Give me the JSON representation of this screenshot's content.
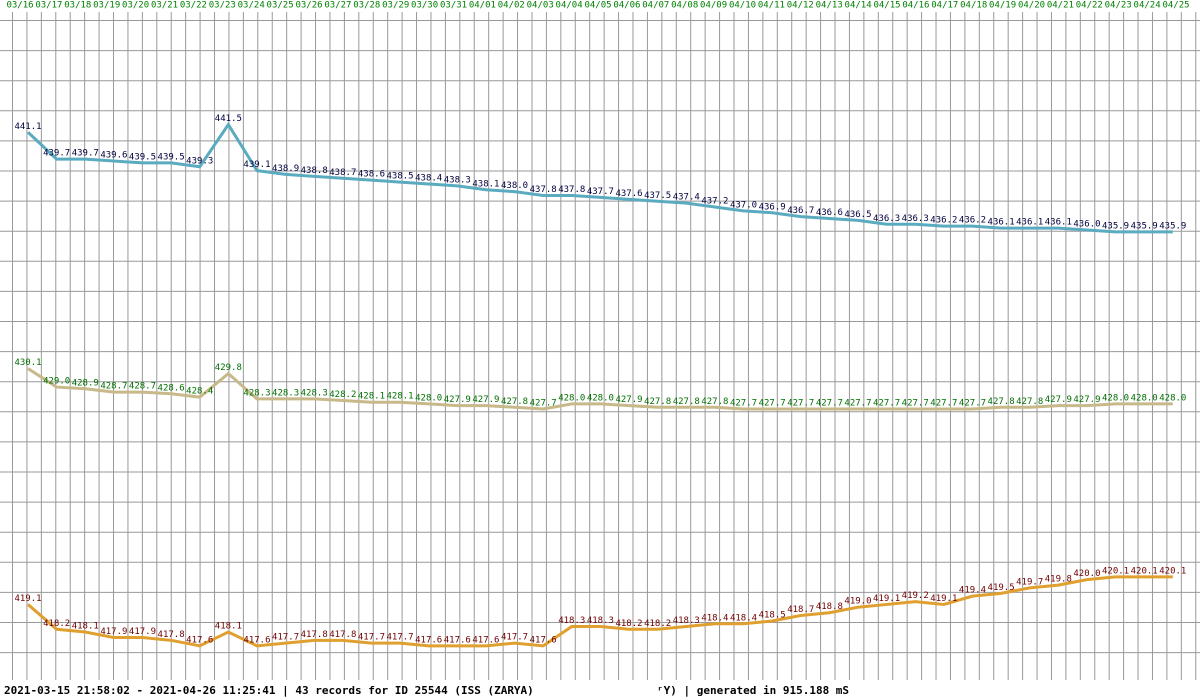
{
  "chart_data": {
    "type": "line",
    "categories": [
      "03/16",
      "03/17",
      "03/18",
      "03/19",
      "03/20",
      "03/21",
      "03/22",
      "03/23",
      "03/24",
      "03/25",
      "03/26",
      "03/27",
      "03/28",
      "03/29",
      "03/30",
      "03/31",
      "04/01",
      "04/02",
      "04/03",
      "04/04",
      "04/05",
      "04/06",
      "04/07",
      "04/08",
      "04/09",
      "04/10",
      "04/11",
      "04/12",
      "04/13",
      "04/14",
      "04/15",
      "04/16",
      "04/17",
      "04/18",
      "04/19",
      "04/20",
      "04/21",
      "04/22",
      "04/23",
      "04/24",
      "04/25"
    ],
    "series": [
      {
        "color": "#5aabc0",
        "label_color": "#000040",
        "ylim": [
          412,
          448
        ],
        "values": [
          441.1,
          439.7,
          439.7,
          439.6,
          439.5,
          439.5,
          439.3,
          441.5,
          439.1,
          438.9,
          438.8,
          438.7,
          438.6,
          438.5,
          438.4,
          438.3,
          438.1,
          438.0,
          437.8,
          437.8,
          437.7,
          437.6,
          437.5,
          437.4,
          437.2,
          437.0,
          436.9,
          436.7,
          436.6,
          436.5,
          436.3,
          436.3,
          436.2,
          436.2,
          436.1,
          436.1,
          436.1,
          436.0,
          435.9,
          435.9,
          435.9
        ],
        "value_labels": [
          "441.1",
          "439.7",
          "439.7",
          "439.6",
          "439.5",
          "439.5",
          "439.3",
          "441.5",
          "439.1",
          "438.9",
          "438.8",
          "438.7",
          "438.6",
          "438.5",
          "438.4",
          "438.3",
          "438.1",
          "438.0",
          "437.8",
          "437.8",
          "437.7",
          "437.6",
          "437.5",
          "437.4",
          "437.2",
          "437.0",
          "436.9",
          "436.7",
          "436.6",
          "436.5",
          "436.3",
          "436.3",
          "436.2",
          "436.2",
          "436.1",
          "436.1",
          "436.1",
          "436.0",
          "435.9",
          "435.9",
          "435.9"
        ]
      },
      {
        "color": "#c8b98a",
        "label_color": "#007000",
        "ylim": [
          411,
          452
        ],
        "values": [
          430.1,
          429.0,
          428.9,
          428.7,
          428.7,
          428.6,
          428.4,
          429.8,
          428.3,
          428.3,
          428.3,
          428.2,
          428.1,
          428.1,
          428.0,
          427.9,
          427.9,
          427.8,
          427.7,
          428.0,
          428.0,
          427.9,
          427.8,
          427.8,
          427.8,
          427.7,
          427.7,
          427.7,
          427.7,
          427.7,
          427.7,
          427.7,
          427.7,
          427.7,
          427.8,
          427.8,
          427.9,
          427.9,
          428.0,
          428.0,
          428.0
        ],
        "value_labels": [
          "430.1",
          "429.0",
          "428.9",
          "428.7",
          "428.7",
          "428.6",
          "428.4",
          "429.8",
          "428.3",
          "428.3",
          "428.3",
          "428.2",
          "428.1",
          "428.1",
          "428.0",
          "427.9",
          "427.9",
          "427.8",
          "427.7",
          "428.0",
          "428.0",
          "427.9",
          "427.8",
          "427.8",
          "427.8",
          "427.7",
          "427.7",
          "427.7",
          "427.7",
          "427.7",
          "427.7",
          "427.7",
          "427.7",
          "427.7",
          "427.8",
          "427.8",
          "427.9",
          "427.9",
          "428.0",
          "428.0",
          "428.0"
        ]
      },
      {
        "color": "#e0a030",
        "label_color": "#700000",
        "ylim": [
          416,
          441
        ],
        "values": [
          419.1,
          418.2,
          418.1,
          417.9,
          417.9,
          417.8,
          417.6,
          418.1,
          417.6,
          417.7,
          417.8,
          417.8,
          417.7,
          417.7,
          417.6,
          417.6,
          417.6,
          417.7,
          417.6,
          418.3,
          418.3,
          418.2,
          418.2,
          418.3,
          418.4,
          418.4,
          418.5,
          418.7,
          418.8,
          419.0,
          419.1,
          419.2,
          419.1,
          419.4,
          419.5,
          419.7,
          419.8,
          420.0,
          420.1,
          420.1,
          420.1
        ],
        "value_labels": [
          "419.1",
          "418.2",
          "418.1",
          "417.9",
          "417.9",
          "417.8",
          "417.6",
          "418.1",
          "417.6",
          "417.7",
          "417.8",
          "417.8",
          "417.7",
          "417.7",
          "417.6",
          "417.6",
          "417.6",
          "417.7",
          "417.6",
          "418.3",
          "418.3",
          "418.2",
          "418.2",
          "418.3",
          "418.4",
          "418.4",
          "418.5",
          "418.7",
          "418.8",
          "419.0",
          "419.1",
          "419.2",
          "419.1",
          "419.4",
          "419.5",
          "419.7",
          "419.8",
          "420.0",
          "420.1",
          "420.1",
          "420.1"
        ]
      }
    ],
    "tick_color": "#008000",
    "footer_left": "2021-03-15 21:58:02 - 2021-04-26 11:25:41 | 43 records for ID 25544 (ISS (ZARYA)",
    "footer_right": "ʳY) | generated in 915.188 mS"
  }
}
